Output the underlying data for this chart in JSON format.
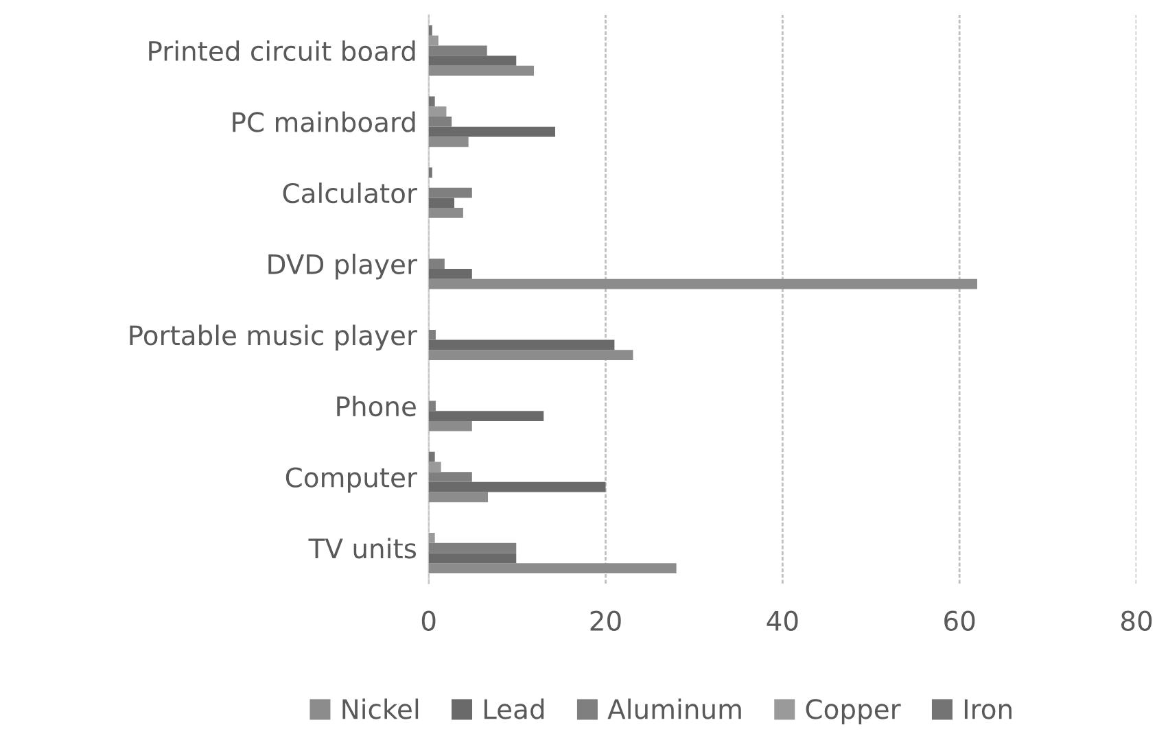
{
  "chart_data": {
    "type": "bar",
    "orientation": "horizontal",
    "categories": [
      "Printed circuit board",
      "PC mainboard",
      "Calculator",
      "DVD player",
      "Portable music player",
      "Phone",
      "Computer",
      "TV units"
    ],
    "series": [
      {
        "name": "Nickel",
        "color": "#8c8c8c",
        "values": [
          11.9,
          4.5,
          3.9,
          62,
          23.1,
          4.9,
          6.7,
          28
        ]
      },
      {
        "name": "Lead",
        "color": "#6a6a6a",
        "values": [
          9.9,
          14.3,
          2.9,
          4.9,
          21.0,
          13.0,
          20.0,
          9.9
        ]
      },
      {
        "name": "Aluminum",
        "color": "#7f7f7f",
        "values": [
          6.6,
          2.6,
          4.9,
          1.8,
          0.8,
          0.8,
          4.9,
          9.9
        ]
      },
      {
        "name": "Copper",
        "color": "#9a9a9a",
        "values": [
          1.1,
          2.0,
          0,
          0,
          0,
          0,
          1.4,
          0.7
        ]
      },
      {
        "name": "Iron",
        "color": "#747474",
        "values": [
          0.4,
          0.7,
          0.4,
          0,
          0,
          0,
          0.7,
          0
        ]
      }
    ],
    "xlim": [
      0,
      80
    ],
    "xticks": [
      0,
      20,
      40,
      60,
      80
    ],
    "grid": "x",
    "legend": "bottom"
  }
}
